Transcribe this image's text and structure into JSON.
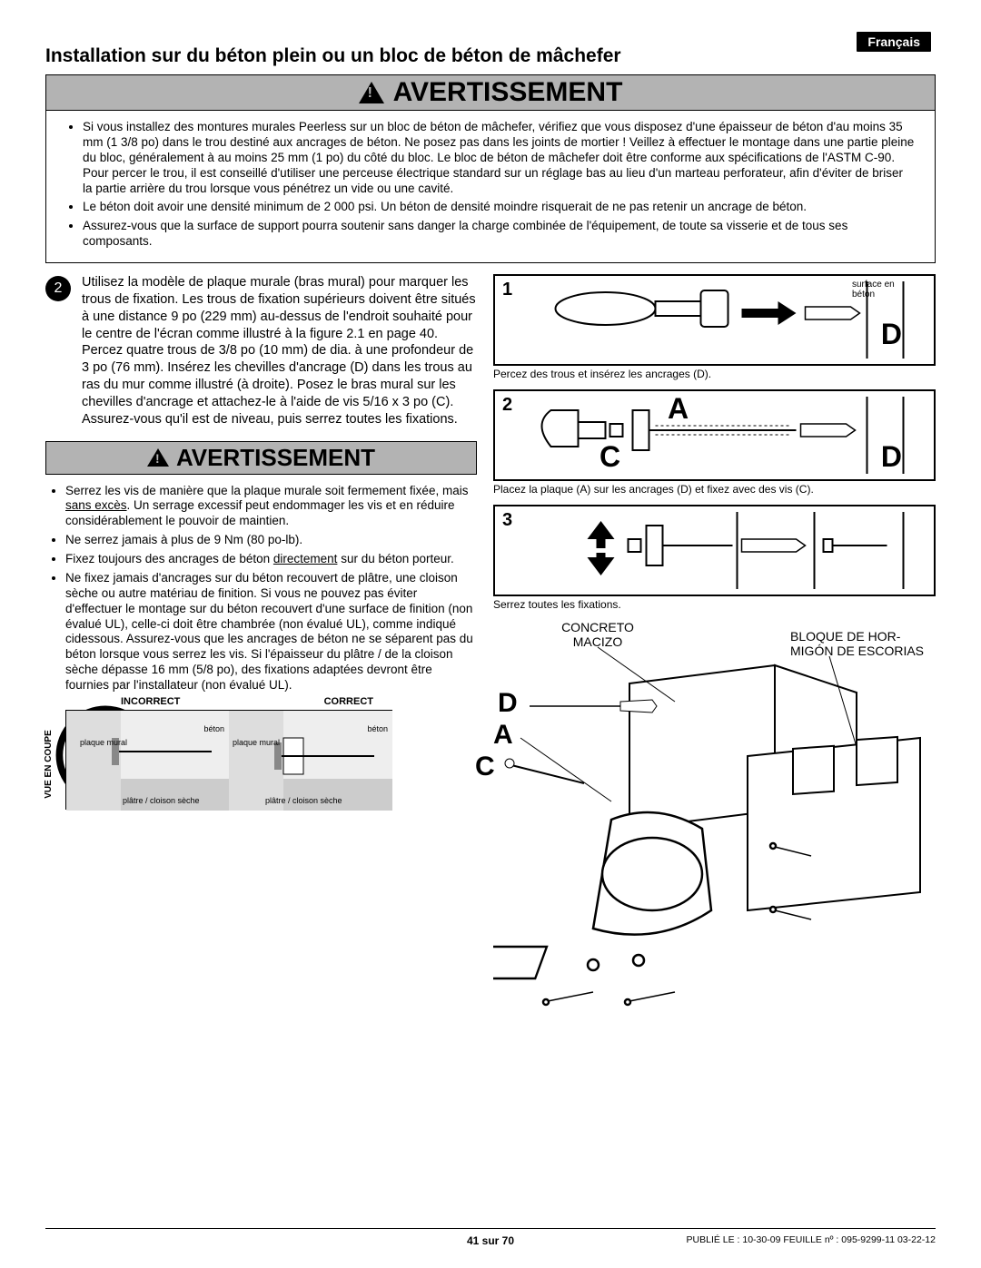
{
  "language_badge": "Français",
  "main_title": "Installation sur du béton plein ou un bloc de béton de mâchefer",
  "warning_label": "AVERTISSEMENT",
  "warning1_items": [
    "Si vous installez des montures murales Peerless sur un bloc de béton de mâchefer, vérifiez que vous disposez d'une épaisseur de béton d'au moins 35 mm (1 3/8 po) dans le trou destiné aux ancrages de béton. Ne posez pas dans les joints de mortier ! Veillez à effectuer le montage dans une partie pleine du bloc, généralement à au moins 25 mm (1 po) du côté du bloc. Le bloc de béton de mâchefer doit être conforme aux spécifications de l'ASTM C-90. Pour percer le trou, il est conseillé d'utiliser une perceuse électrique standard sur un réglage bas au lieu d'un marteau perforateur, afin d'éviter de briser la partie arrière du trou lorsque vous pénétrez un vide ou une cavité.",
    "Le béton doit avoir une densité minimum de 2 000 psi. Un béton de densité moindre risquerait de ne pas retenir un ancrage de béton.",
    "Assurez-vous que la surface de support pourra soutenir sans danger la charge combinée de l'équipement, de toute sa visserie et de tous ses composants."
  ],
  "step2_num": "2",
  "step2_text": "Utilisez la modèle de plaque murale (bras mural) pour marquer les trous de fixation. Les trous de fixation supérieurs doivent être situés à une distance 9 po (229 mm) au-dessus de l'endroit souhaité pour le centre de l'écran comme illustré à la figure 2.1 en page 40. Percez quatre trous de 3/8 po (10 mm) de dia. à une profondeur de 3 po (76 mm). Insérez les chevilles d'ancrage (D) dans les trous au ras du mur comme illustré (à droite). Posez le bras mural sur les chevilles d'ancrage et attachez-le à l'aide de vis 5/16 x 3 po (C). Assurez-vous qu'il est de niveau, puis serrez toutes les fixations.",
  "warning2_items": [
    "Serrez les vis de manière que la plaque murale soit fermement fixée, mais sans excès. Un serrage excessif peut endommager les vis et en réduire considérablement le pouvoir de maintien.",
    "Ne serrez jamais à plus de 9 Nm (80 po-lb).",
    "Fixez toujours des ancrages de béton directement sur du béton porteur.",
    "Ne fixez jamais d'ancrages sur du béton recouvert de plâtre, une cloison sèche ou autre matériau de finition. Si vous ne pouvez pas éviter d'effectuer le montage sur du béton recouvert d'une surface de finition (non évalué UL), celle-ci doit être chambrée (non évalué UL), comme indiqué cidessous. Assurez-vous que les ancrages de béton ne se séparent pas du béton lorsque vous serrez les vis. Si l'épaisseur du plâtre / de la cloison sèche dépasse 16 mm (5/8 po), des fixations adaptées devront être fournies par l'installateur (non évalué UL)."
  ],
  "cross_section": {
    "vertical_label": "VUE EN COUPE",
    "incorrect_label": "INCORRECT",
    "correct_label": "CORRECT",
    "anno_plaque": "plaque mural",
    "anno_beton": "béton",
    "anno_platre": "plâtre / cloison sèche"
  },
  "fig1": {
    "num": "1",
    "surface_label": "surface en béton",
    "letter_D": "D",
    "caption": "Percez des trous et insérez les ancrages (D)."
  },
  "fig2": {
    "num": "2",
    "letter_A": "A",
    "letter_C": "C",
    "letter_D": "D",
    "caption": "Placez la plaque (A) sur les ancrages (D) et fixez avec des vis (C)."
  },
  "fig3": {
    "num": "3",
    "caption": "Serrez toutes les fixations."
  },
  "lower_labels": {
    "concreto": "CONCRETO MACIZO",
    "bloque": "BLOQUE DE HOR-MIGÓN DE ESCORIAS",
    "D": "D",
    "A": "A",
    "C": "C"
  },
  "footer": {
    "page": "41 sur 70",
    "pub": "PUBLIÉ LE : 10-30-09  FEUILLE nº : 095-9299-11  03-22-12"
  }
}
